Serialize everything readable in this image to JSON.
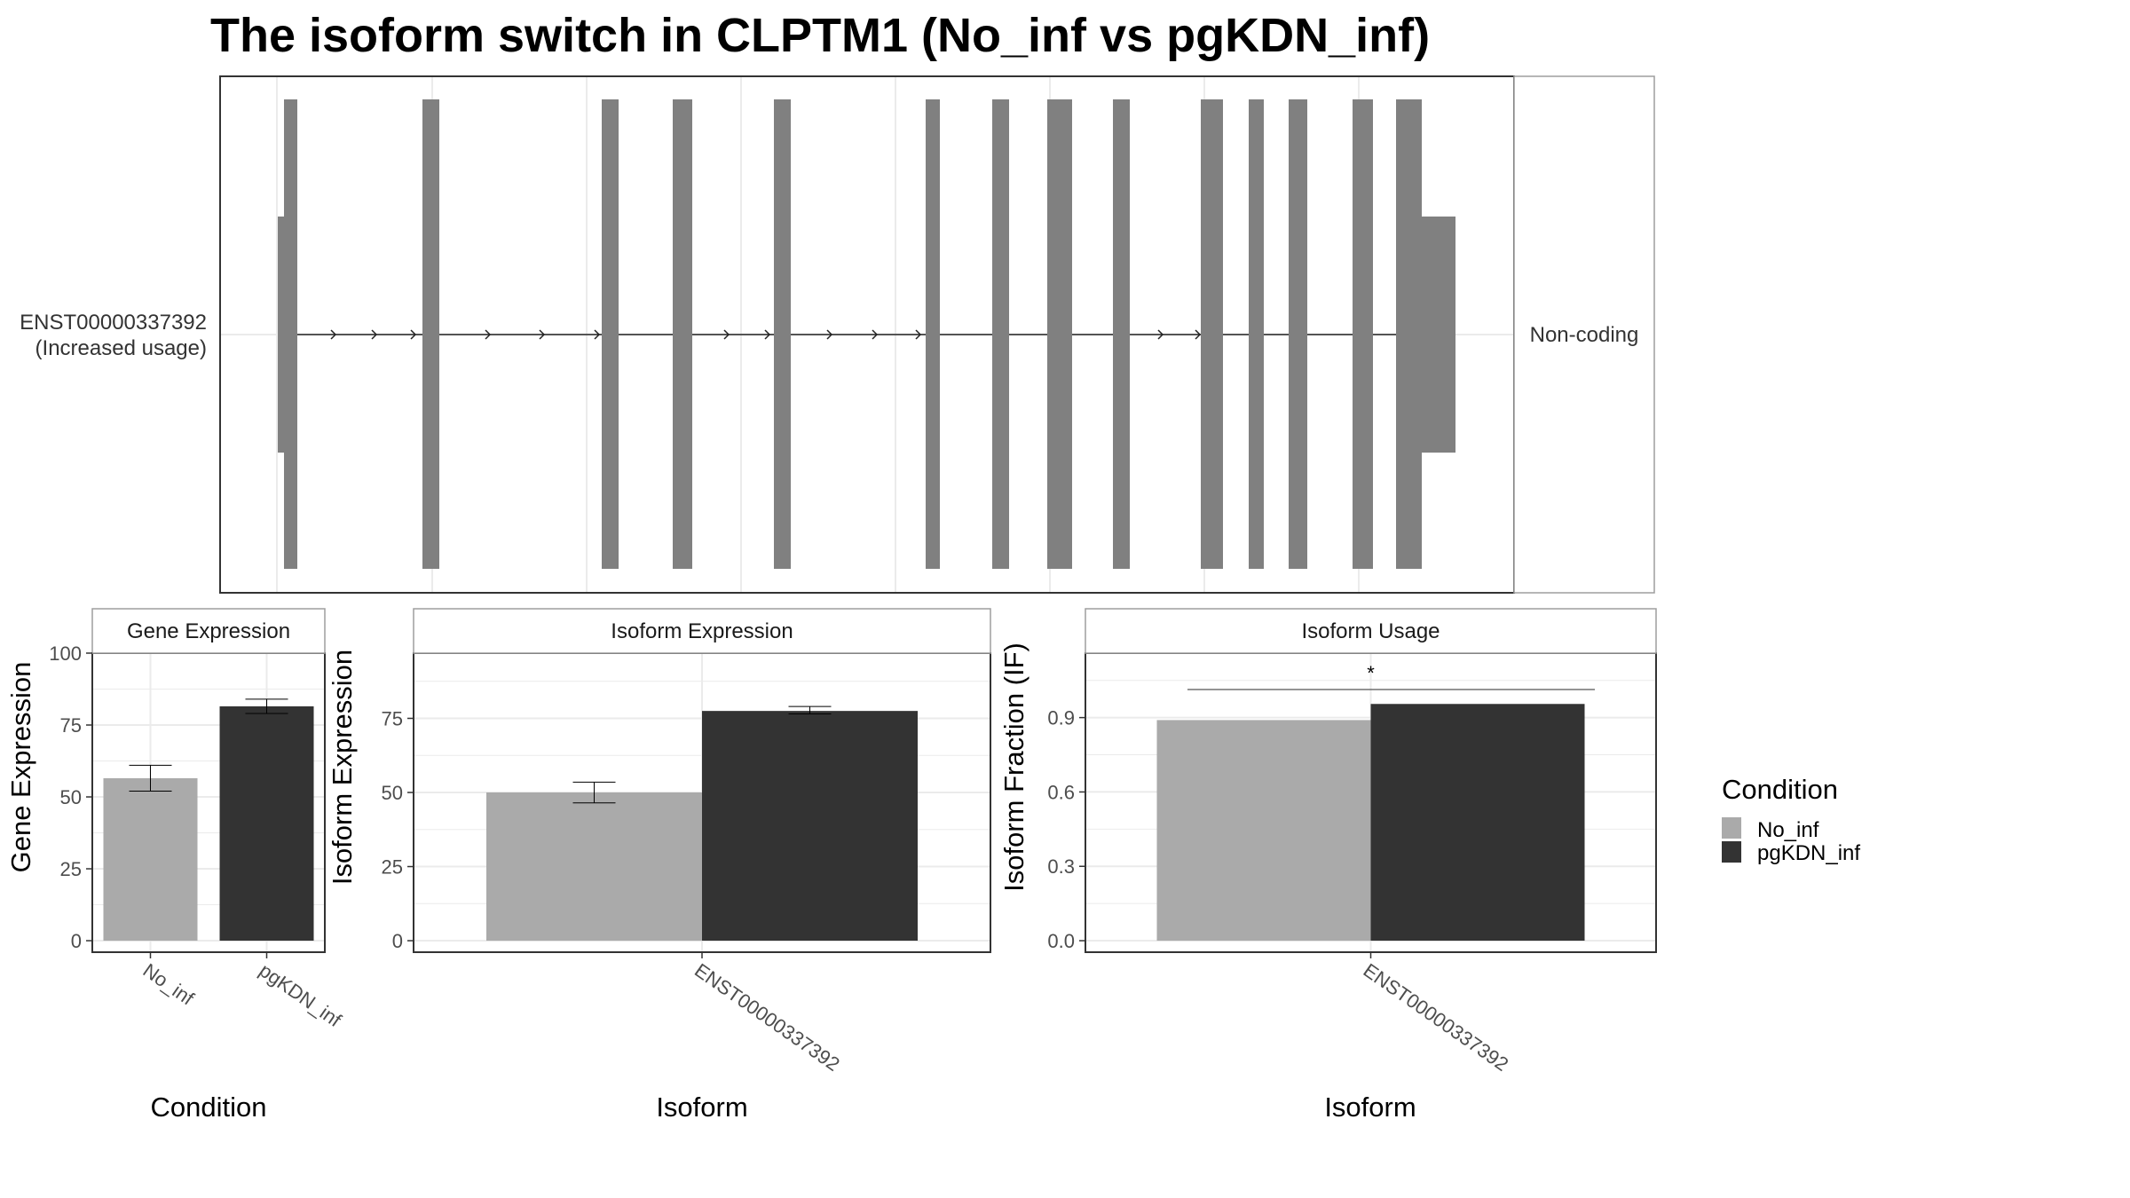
{
  "title": "The isoform switch in CLPTM1 (No_inf vs pgKDN_inf)",
  "colors": {
    "no_inf": "#aaaaaa",
    "pgkdn_inf": "#333333",
    "exon": "#808080",
    "grid": "#ebebeb",
    "panel_border": "#333333",
    "strip_border": "#9e9e9e"
  },
  "transcript_panel": {
    "isoform_label": "ENST00000337392",
    "isoform_note": "(Increased usage)",
    "strip_label": "Non-coding"
  },
  "legend": {
    "title": "Condition",
    "items": [
      {
        "label": "No_inf",
        "color": "#aaaaaa"
      },
      {
        "label": "pgKDN_inf",
        "color": "#333333"
      }
    ]
  },
  "chart_data": [
    {
      "type": "bar",
      "panel": "Gene Expression",
      "xlabel": "Condition",
      "ylabel": "Gene Expression",
      "categories": [
        "No_inf",
        "pgKDN_inf"
      ],
      "values": [
        56.5,
        81.5
      ],
      "error_low": [
        52,
        79
      ],
      "error_high": [
        61,
        84
      ],
      "ylim": [
        0,
        100
      ],
      "yticks": [
        0,
        25,
        50,
        75,
        100
      ]
    },
    {
      "type": "bar",
      "panel": "Isoform Expression",
      "xlabel": "Isoform",
      "ylabel": "Isoform Expression",
      "categories": [
        "ENST00000337392"
      ],
      "series": [
        {
          "name": "No_inf",
          "values": [
            50
          ],
          "error_low": [
            46.5
          ],
          "error_high": [
            53.5
          ]
        },
        {
          "name": "pgKDN_inf",
          "values": [
            77.5
          ],
          "error_low": [
            76.5
          ],
          "error_high": [
            79
          ]
        }
      ],
      "ylim": [
        0,
        97
      ],
      "yticks": [
        0,
        25,
        50,
        75
      ]
    },
    {
      "type": "bar",
      "panel": "Isoform Usage",
      "xlabel": "Isoform",
      "ylabel": "Isoform Fraction (IF)",
      "categories": [
        "ENST00000337392"
      ],
      "series": [
        {
          "name": "No_inf",
          "values": [
            0.89
          ]
        },
        {
          "name": "pgKDN_inf",
          "values": [
            0.955
          ]
        }
      ],
      "ylim": [
        0,
        1.16
      ],
      "yticks": [
        "0.0",
        "0.3",
        "0.6",
        "0.9"
      ],
      "significance": "*"
    }
  ]
}
